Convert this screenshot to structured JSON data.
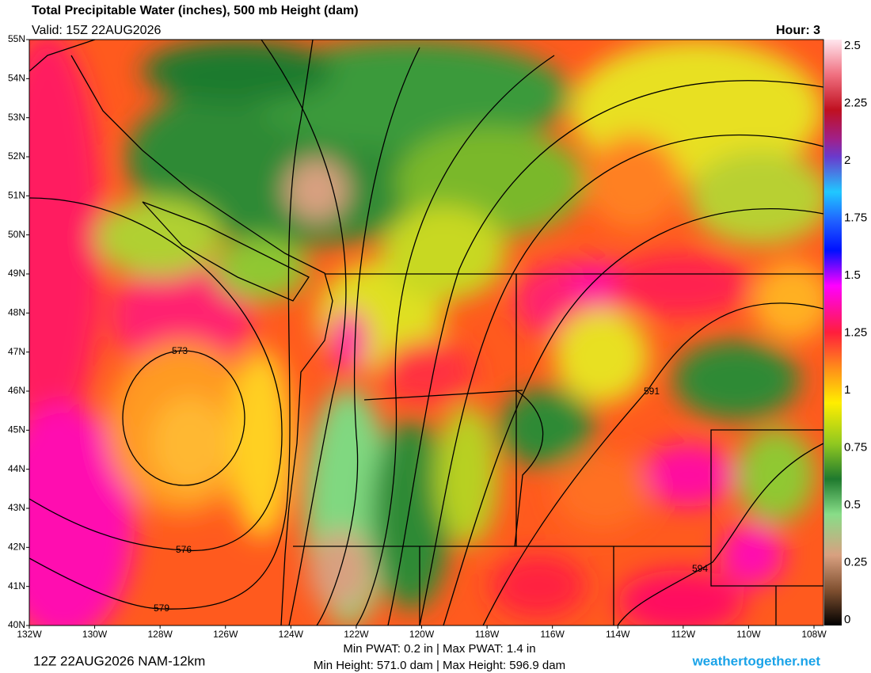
{
  "header": {
    "title": "Total Precipitable Water (inches), 500 mb Height (dam)",
    "valid": "Valid: 15Z 22AUG2026",
    "hour": "Hour: 3"
  },
  "map": {
    "lat_labels": [
      "55N",
      "54N",
      "53N",
      "52N",
      "51N",
      "50N",
      "49N",
      "48N",
      "47N",
      "46N",
      "45N",
      "44N",
      "43N",
      "42N",
      "41N",
      "40N"
    ],
    "lon_labels": [
      "132W",
      "130W",
      "128W",
      "126W",
      "124W",
      "122W",
      "120W",
      "118W",
      "116W",
      "114W",
      "112W",
      "110W",
      "108W"
    ],
    "contour_labels": [
      "573",
      "576",
      "579",
      "591",
      "594"
    ]
  },
  "colorbar": {
    "ticks": [
      "2.5",
      "2.25",
      "2",
      "1.75",
      "1.5",
      "1.25",
      "1",
      "0.75",
      "0.5",
      "0.25",
      "0"
    ]
  },
  "footer": {
    "run": "12Z 22AUG2026 NAM-12km",
    "stats": [
      "Min PWAT:   0.2 in | Max PWAT:   1.4 in",
      "Min Height: 571.0 dam | Max Height: 596.9 dam"
    ],
    "site": "weathertogether.net"
  }
}
